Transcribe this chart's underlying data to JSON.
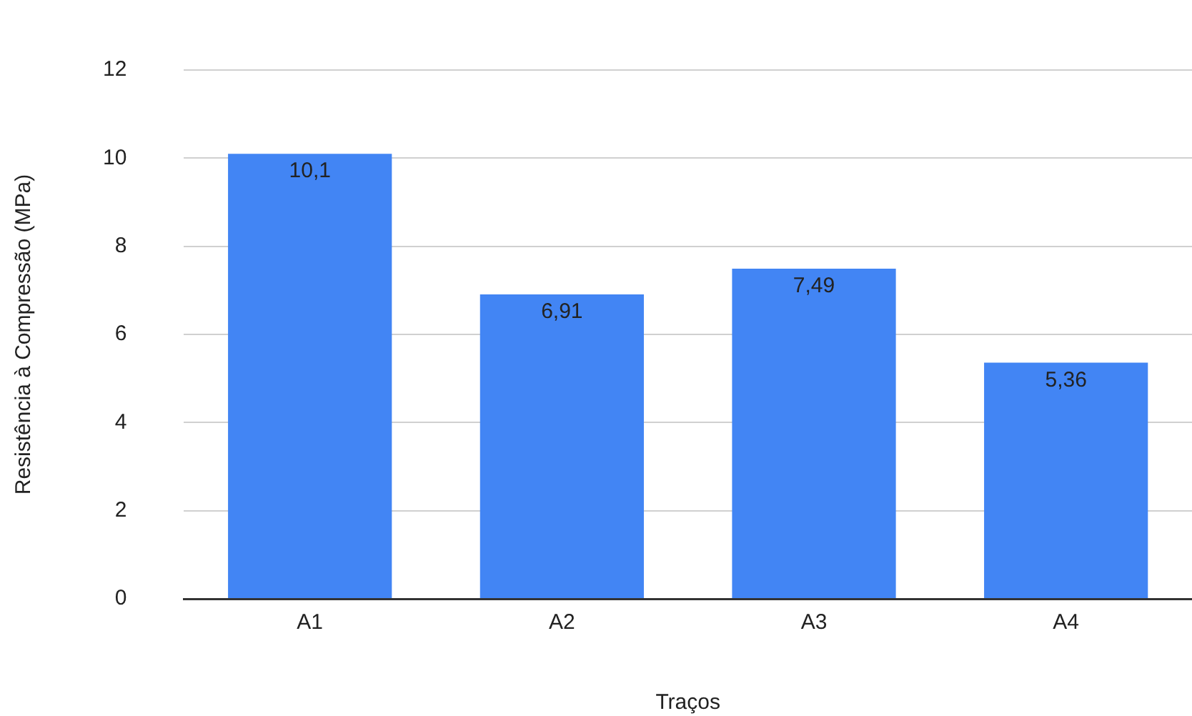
{
  "chart_data": {
    "type": "bar",
    "xlabel": "Traços",
    "ylabel": "Resistência à Compressão (MPa)",
    "categories": [
      "A1",
      "A2",
      "A3",
      "A4"
    ],
    "values": [
      10.1,
      6.91,
      7.49,
      5.36
    ],
    "value_labels": [
      "10,1",
      "6,91",
      "7,49",
      "5,36"
    ],
    "color": "#4285f4",
    "ylim": [
      0,
      12
    ],
    "yticks": [
      0,
      2,
      4,
      6,
      8,
      10,
      12
    ],
    "grid": "y"
  }
}
